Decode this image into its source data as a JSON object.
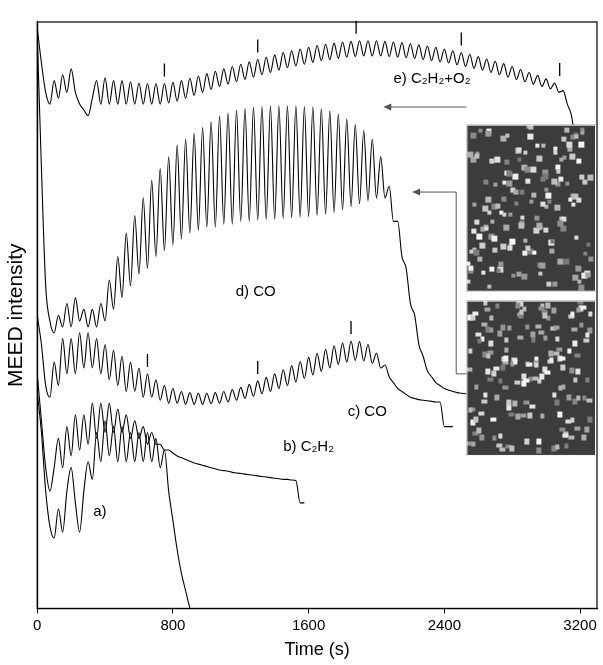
{
  "chart_data": {
    "type": "line",
    "x_label": "Time (s)",
    "y_label": "MEED intensity",
    "xlim": [
      0,
      3300
    ],
    "xticks": [
      0,
      800,
      1600,
      2400,
      3200
    ],
    "ylim": [
      0,
      100
    ],
    "tick_labels": "x",
    "grid": false,
    "x": [
      0,
      25,
      50,
      75,
      100,
      125,
      150,
      175,
      200,
      225,
      250,
      275,
      300,
      325,
      350,
      375,
      400,
      425,
      450,
      475,
      500,
      525,
      550,
      575,
      600,
      625,
      650,
      675,
      700,
      725,
      750,
      775,
      800,
      825,
      850,
      875,
      900,
      925,
      950,
      975,
      1000,
      1025,
      1050,
      1075,
      1100,
      1125,
      1150,
      1175,
      1200,
      1225,
      1250,
      1275,
      1300,
      1325,
      1350,
      1375,
      1400,
      1425,
      1450,
      1475,
      1500,
      1525,
      1550,
      1575,
      1600,
      1625,
      1650,
      1675,
      1700,
      1725,
      1750,
      1775,
      1800,
      1825,
      1850,
      1875,
      1900,
      1925,
      1950,
      1975,
      2000,
      2025,
      2050,
      2075,
      2100,
      2125,
      2150,
      2175,
      2200,
      2225,
      2250,
      2275,
      2300,
      2325,
      2350,
      2375,
      2400,
      2425,
      2450,
      2475,
      2500,
      2525,
      2550,
      2575,
      2600,
      2625,
      2650,
      2675,
      2700,
      2725,
      2750,
      2775,
      2800,
      2825,
      2850,
      2875,
      2900,
      2925,
      2950,
      2975,
      3000,
      3025,
      3050,
      3075,
      3100,
      3125,
      3150,
      3175,
      3200
    ],
    "series": [
      {
        "name": "a)",
        "color": "#000000",
        "values": [
          37,
          30,
          20,
          14,
          12,
          17,
          13,
          20,
          24,
          18,
          13,
          20,
          25,
          22,
          30,
          25,
          32,
          26,
          31,
          25,
          31,
          25,
          30,
          25,
          30,
          25,
          30,
          25,
          29,
          24,
          27,
          20,
          15,
          10,
          6,
          3,
          0,
          null,
          null,
          null,
          null,
          null,
          null,
          null,
          null,
          null,
          null,
          null,
          null,
          null,
          null,
          null,
          null,
          null,
          null,
          null,
          null,
          null,
          null,
          null,
          null,
          null,
          null,
          null,
          null,
          null,
          null,
          null,
          null,
          null,
          null,
          null,
          null,
          null,
          null,
          null,
          null,
          null,
          null,
          null,
          null,
          null,
          null,
          null,
          null,
          null,
          null,
          null,
          null,
          null,
          null,
          null,
          null,
          null,
          null,
          null,
          null,
          null,
          null,
          null,
          null,
          null,
          null,
          null,
          null,
          null,
          null,
          null,
          null,
          null,
          null,
          null,
          null,
          null,
          null,
          null,
          null,
          null,
          null,
          null,
          null,
          null,
          null,
          null,
          null,
          null,
          null,
          null,
          null
        ]
      },
      {
        "name": "b) C₂H₂",
        "color": "#000000",
        "values": [
          40,
          32,
          24,
          20,
          24,
          29,
          24,
          31,
          26,
          33,
          27,
          33,
          28,
          35,
          29,
          35,
          30,
          35,
          30,
          34,
          30,
          33,
          29,
          32,
          29,
          31,
          28,
          30,
          28,
          28,
          27,
          27,
          26.5,
          26,
          25.7,
          25.4,
          25.1,
          24.8,
          24.6,
          24.4,
          24.2,
          24,
          23.8,
          23.6,
          23.5,
          23.4,
          23.2,
          23.1,
          23,
          22.9,
          22.8,
          22.7,
          22.6,
          22.5,
          22.4,
          22.3,
          22.2,
          22.1,
          22,
          22,
          21.9,
          21.8,
          18,
          18,
          null,
          null,
          null,
          null,
          null,
          null,
          null,
          null,
          null,
          null,
          null,
          null,
          null,
          null,
          null,
          null,
          null,
          null,
          null,
          null,
          null,
          null,
          null,
          null,
          null,
          null,
          null,
          null,
          null,
          null,
          null,
          null,
          null,
          null,
          null,
          null,
          null,
          null,
          null,
          null,
          null,
          null,
          null,
          null,
          null,
          null,
          null,
          null,
          null,
          null,
          null,
          null,
          null,
          null,
          null,
          null,
          null,
          null,
          null,
          null,
          null,
          null,
          null,
          null,
          null
        ]
      },
      {
        "name": "c) CO",
        "color": "#000000",
        "marks": [
          650,
          1300,
          1850
        ],
        "values": [
          50,
          45,
          38,
          36,
          42,
          38,
          46,
          40,
          46,
          40,
          47,
          41,
          47,
          41,
          46,
          40,
          45,
          39,
          44,
          38,
          43,
          37,
          42,
          37,
          41,
          36,
          40,
          36,
          39,
          35.5,
          38,
          35,
          37.5,
          35,
          37,
          34.8,
          36.8,
          34.8,
          36.7,
          34.8,
          36.7,
          34.9,
          36.8,
          35,
          37,
          35.2,
          37.3,
          35.5,
          37.7,
          35.8,
          38.2,
          36.2,
          38.8,
          36.6,
          39.4,
          37,
          40,
          37.5,
          40.7,
          38,
          41.4,
          38.6,
          42.1,
          39.2,
          42.8,
          39.8,
          43.5,
          40.4,
          44.2,
          41,
          44.8,
          41.6,
          45.3,
          42,
          45.6,
          42.3,
          45.5,
          42.2,
          45,
          41.8,
          43.5,
          41,
          41.5,
          39.5,
          38.5,
          37.5,
          37,
          36.5,
          36,
          35.8,
          35.6,
          35.5,
          35.4,
          35.3,
          35.2,
          35.2,
          31,
          31,
          31,
          null,
          null,
          null,
          null,
          null,
          null,
          null,
          null,
          null,
          null,
          null,
          null,
          null,
          null,
          null,
          null,
          null,
          null,
          null,
          null,
          null,
          null,
          null,
          null,
          null,
          null,
          null,
          null,
          null,
          null
        ]
      },
      {
        "name": "d) CO",
        "color": "#000000",
        "values": [
          98,
          75,
          55,
          49,
          47,
          50,
          48,
          52,
          48,
          53,
          49,
          51,
          48,
          51,
          48,
          52,
          49,
          56,
          51,
          60,
          53,
          64,
          55,
          67,
          57,
          70,
          58,
          73,
          60,
          75,
          61,
          77,
          62,
          79,
          63,
          80,
          64,
          81,
          64.5,
          82,
          65,
          83,
          65,
          84,
          65.5,
          84.5,
          65.5,
          85,
          66,
          85.3,
          66,
          85.5,
          66.2,
          85.6,
          66.3,
          85.7,
          66.4,
          85.7,
          66.5,
          85.7,
          66.6,
          85.7,
          66.7,
          85.6,
          66.8,
          85.5,
          67,
          85.2,
          67.2,
          84.8,
          67.5,
          84.3,
          68,
          83.5,
          68.5,
          82.5,
          69,
          81.5,
          69.5,
          80,
          70,
          77,
          70,
          72,
          66,
          66,
          60,
          58,
          52,
          50,
          45,
          43,
          40.5,
          39.5,
          38.5,
          38,
          37.5,
          37.2,
          37,
          36.8,
          36.7,
          36.6,
          36.5,
          36.5,
          null,
          null,
          null,
          null,
          null,
          null,
          null,
          null,
          null,
          null,
          null,
          null,
          null,
          null,
          null,
          null,
          null,
          null,
          null,
          null,
          null,
          null,
          null,
          null,
          null
        ]
      },
      {
        "name": "e) C₂H₂+O₂",
        "color": "#000000",
        "marks": [
          750,
          1300,
          1880,
          2500,
          3080
        ],
        "values": [
          99,
          93,
          88,
          86,
          90,
          87,
          91,
          88,
          92,
          88,
          86,
          85,
          84,
          87,
          90,
          86,
          90.5,
          86,
          90,
          86,
          90,
          86,
          89.8,
          86,
          89.6,
          86,
          89.5,
          86,
          89.5,
          86,
          89.5,
          86.2,
          89.7,
          86.5,
          90,
          87,
          90.4,
          87.5,
          90.8,
          88,
          91.2,
          88.5,
          91.6,
          89,
          92,
          89.4,
          92.4,
          89.8,
          92.8,
          90.2,
          93.2,
          90.6,
          93.6,
          91,
          94,
          91.4,
          94.4,
          91.8,
          94.8,
          92.2,
          95.1,
          92.5,
          95.4,
          92.8,
          95.7,
          93.1,
          96,
          93.4,
          96.2,
          93.6,
          96.4,
          93.8,
          96.6,
          94,
          96.7,
          94.1,
          96.8,
          94.2,
          96.8,
          94.2,
          96.8,
          94.2,
          96.7,
          94.1,
          96.6,
          94,
          96.5,
          93.9,
          96.3,
          93.8,
          96.1,
          93.6,
          95.9,
          93.4,
          95.7,
          93.2,
          95.4,
          93,
          95.1,
          92.7,
          94.8,
          92.4,
          94.5,
          92.1,
          94.1,
          91.8,
          93.7,
          91.4,
          93.3,
          91,
          92.9,
          90.6,
          92.4,
          90.2,
          91.9,
          89.8,
          91.4,
          89.4,
          90.9,
          89,
          90.3,
          88.6,
          89.6,
          88,
          88.3,
          86,
          84,
          79,
          75
        ]
      }
    ]
  }
}
